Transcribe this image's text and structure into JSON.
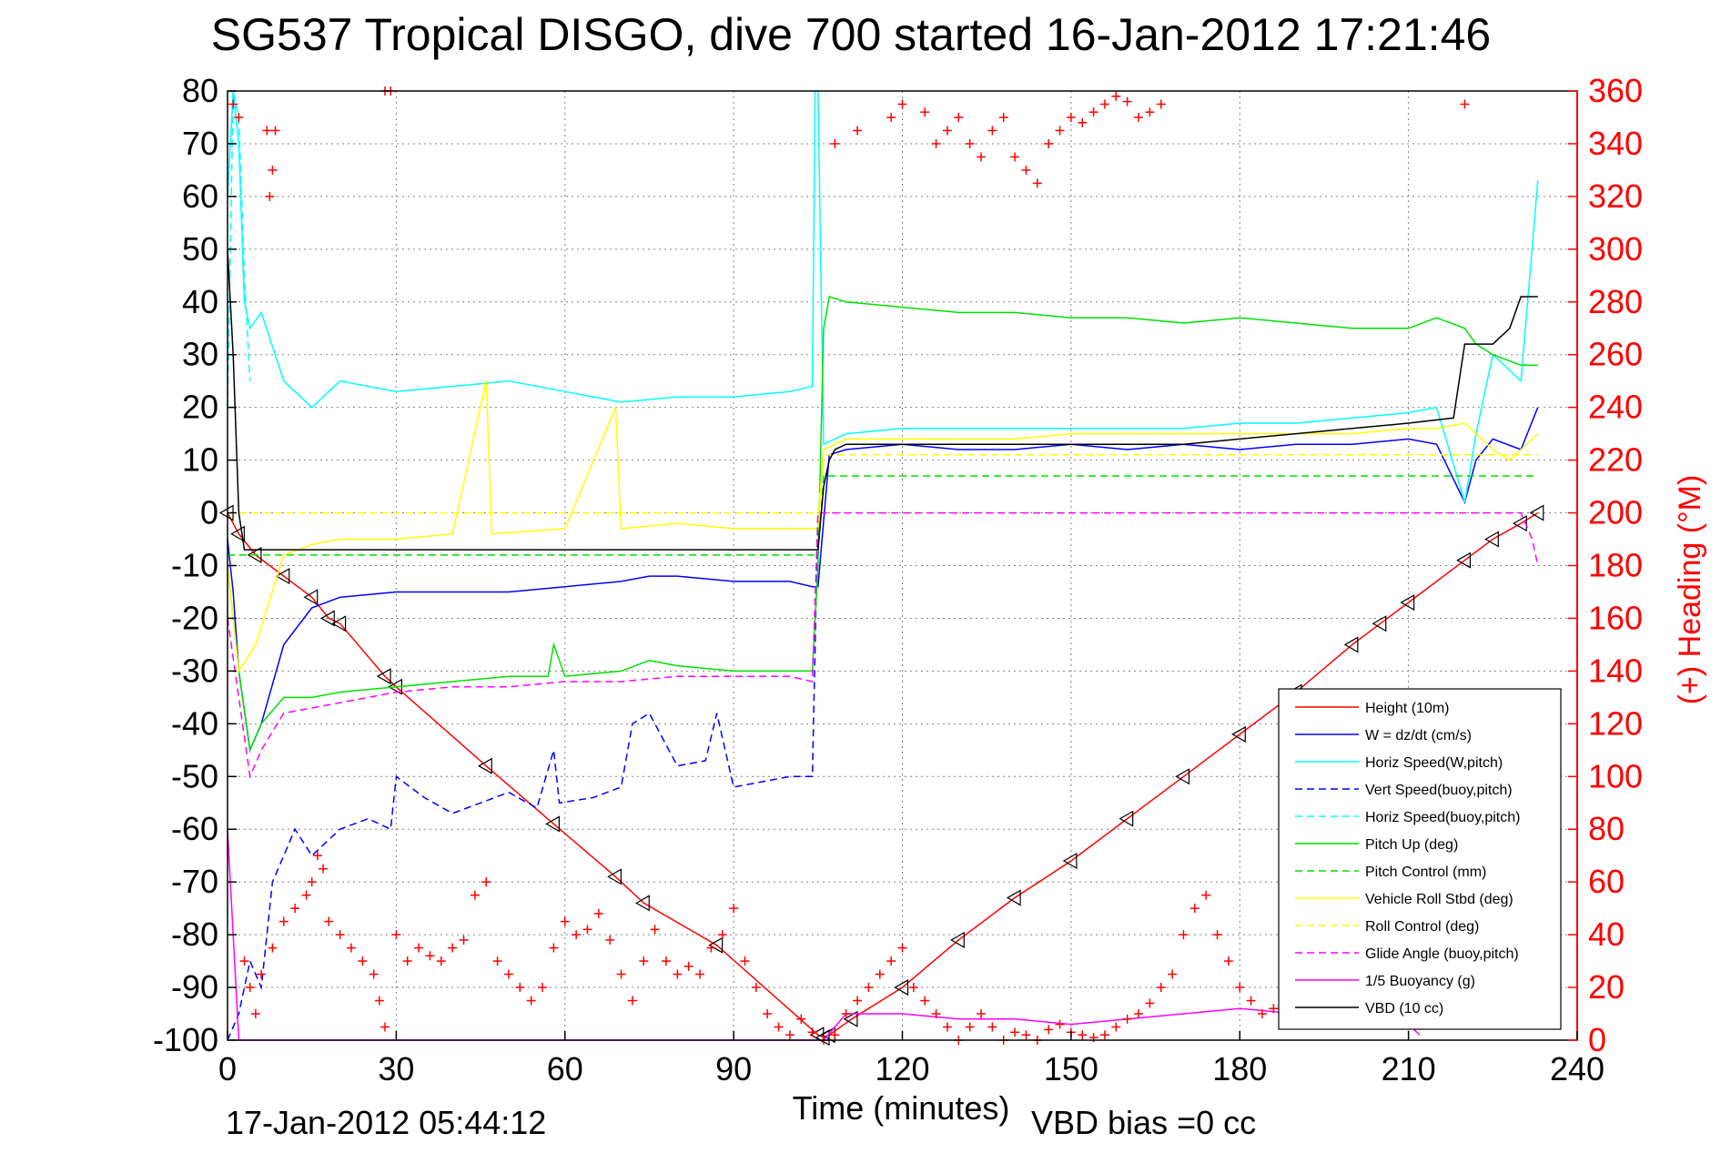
{
  "chart_data": {
    "type": "line",
    "title": "SG537 Tropical DISGO, dive 700 started 16-Jan-2012 17:21:46",
    "xlabel": "Time (minutes)",
    "ylabel_right": "(+) Heading (°M)",
    "end_time_label": "17-Jan-2012 05:44:12",
    "vbd_bias_label": "VBD bias =0 cc",
    "xlim": [
      0,
      240
    ],
    "ylim_left": [
      -100,
      80
    ],
    "ylim_right": [
      0,
      360
    ],
    "x_ticks": [
      0,
      30,
      60,
      90,
      120,
      150,
      180,
      210,
      240
    ],
    "y_ticks_left": [
      80,
      70,
      60,
      50,
      40,
      30,
      20,
      10,
      0,
      -10,
      -20,
      -30,
      -40,
      -50,
      -60,
      -70,
      -80,
      -90,
      -100
    ],
    "y_ticks_right": [
      360,
      340,
      320,
      300,
      280,
      260,
      240,
      220,
      200,
      180,
      160,
      140,
      120,
      100,
      80,
      60,
      40,
      20,
      0
    ],
    "grid": true,
    "legend_position": "bottom-right",
    "colors": {
      "height": "#ff0000",
      "w": "#0000ff",
      "horiz_w": "#00ffff",
      "vert_buoy": "#0000ff",
      "horiz_buoy": "#00ffff",
      "pitch_up": "#00e000",
      "pitch_control": "#00e000",
      "roll": "#ffff00",
      "roll_control": "#ffff00",
      "glide_angle": "#ff00ff",
      "buoyancy": "#ff00ff",
      "vbd": "#000000",
      "heading": "#ff0000"
    },
    "legend": [
      {
        "label": "Height (10m)",
        "key": "height",
        "dash": false
      },
      {
        "label": "W = dz/dt (cm/s)",
        "key": "w",
        "dash": false
      },
      {
        "label": "Horiz Speed(W,pitch)",
        "key": "horiz_w",
        "dash": false
      },
      {
        "label": "Vert Speed(buoy,pitch)",
        "key": "vert_buoy",
        "dash": true
      },
      {
        "label": "Horiz Speed(buoy,pitch)",
        "key": "horiz_buoy",
        "dash": true
      },
      {
        "label": "Pitch Up (deg)",
        "key": "pitch_up",
        "dash": false
      },
      {
        "label": "Pitch Control (mm)",
        "key": "pitch_control",
        "dash": true
      },
      {
        "label": "Vehicle Roll Stbd (deg)",
        "key": "roll",
        "dash": false
      },
      {
        "label": "Roll Control (deg)",
        "key": "roll_control",
        "dash": true
      },
      {
        "label": "Glide Angle (buoy,pitch)",
        "key": "glide_angle",
        "dash": true
      },
      {
        "label": "1/5 Buoyancy (g)",
        "key": "buoyancy",
        "dash": false
      },
      {
        "label": "VBD (10 cc)",
        "key": "vbd",
        "dash": false
      }
    ],
    "series": [
      {
        "key": "height",
        "axis": "left",
        "dash": false,
        "markers": true,
        "x": [
          0,
          2,
          5,
          10,
          15,
          18,
          20,
          28,
          30,
          46,
          58,
          69,
          74,
          87,
          105,
          106,
          107,
          111,
          120,
          130,
          140,
          150,
          160,
          170,
          180,
          190,
          200,
          205,
          210,
          220,
          225,
          230,
          233
        ],
        "y": [
          0,
          -4,
          -8,
          -12,
          -16,
          -20,
          -21,
          -31,
          -33,
          -48,
          -59,
          -69,
          -74,
          -82,
          -99,
          -99.5,
          -99,
          -96,
          -90,
          -81,
          -73,
          -66,
          -58,
          -50,
          -42,
          -34,
          -25,
          -21,
          -17,
          -9,
          -5,
          -2,
          0
        ]
      },
      {
        "key": "w",
        "axis": "left",
        "dash": false,
        "x": [
          0,
          1,
          2,
          4,
          6,
          10,
          15,
          20,
          30,
          40,
          50,
          60,
          70,
          75,
          80,
          90,
          100,
          104,
          105,
          107,
          110,
          120,
          130,
          140,
          150,
          160,
          170,
          180,
          190,
          200,
          210,
          215,
          220,
          222,
          225,
          230,
          233
        ],
        "y": [
          -5,
          -15,
          -30,
          -45,
          -40,
          -25,
          -18,
          -16,
          -15,
          -15,
          -15,
          -14,
          -13,
          -12,
          -12,
          -13,
          -13,
          -14,
          -14,
          11,
          12,
          13,
          12,
          12,
          13,
          12,
          13,
          12,
          13,
          13,
          14,
          13,
          2,
          10,
          14,
          12,
          20
        ]
      },
      {
        "key": "horiz_w",
        "axis": "left",
        "dash": false,
        "x": [
          0,
          1,
          2,
          3,
          4,
          6,
          10,
          15,
          20,
          25,
          30,
          40,
          50,
          60,
          70,
          80,
          90,
          100,
          104,
          104.5,
          105,
          106,
          110,
          120,
          130,
          140,
          150,
          160,
          170,
          180,
          190,
          200,
          210,
          215,
          220,
          222,
          225,
          230,
          233
        ],
        "y": [
          60,
          80,
          70,
          40,
          35,
          38,
          25,
          20,
          25,
          24,
          23,
          24,
          25,
          23,
          21,
          22,
          22,
          23,
          24,
          80,
          80,
          13,
          15,
          16,
          16,
          16,
          16,
          16,
          16,
          17,
          17,
          18,
          19,
          20,
          2,
          15,
          30,
          25,
          63
        ]
      },
      {
        "key": "vert_buoy",
        "axis": "left",
        "dash": true,
        "x": [
          0,
          2,
          4,
          6,
          8,
          10,
          12,
          15,
          20,
          25,
          29,
          30,
          35,
          40,
          45,
          50,
          55,
          58,
          59,
          65,
          70,
          72,
          75,
          80,
          85,
          87,
          90,
          95,
          100,
          104,
          105
        ],
        "y": [
          -100,
          -95,
          -85,
          -90,
          -70,
          -65,
          -60,
          -65,
          -60,
          -58,
          -60,
          -50,
          -54,
          -57,
          -55,
          -53,
          -56,
          -45,
          -55,
          -54,
          -52,
          -40,
          -38,
          -48,
          -47,
          -38,
          -52,
          -51,
          -50,
          -50,
          0
        ]
      },
      {
        "key": "horiz_buoy",
        "axis": "left",
        "dash": true,
        "x": [
          0,
          1,
          2,
          3,
          4
        ],
        "y": [
          20,
          80,
          75,
          45,
          25
        ]
      },
      {
        "key": "pitch_up",
        "axis": "left",
        "dash": false,
        "x": [
          0,
          2,
          4,
          6,
          10,
          15,
          20,
          30,
          40,
          50,
          57,
          58,
          60,
          70,
          75,
          80,
          90,
          100,
          104,
          105,
          106,
          107,
          110,
          120,
          130,
          140,
          150,
          160,
          170,
          180,
          190,
          200,
          210,
          215,
          220,
          222,
          225,
          230,
          233
        ],
        "y": [
          -10,
          -30,
          -45,
          -40,
          -35,
          -35,
          -34,
          -33,
          -32,
          -31,
          -31,
          -25,
          -31,
          -30,
          -28,
          -29,
          -30,
          -30,
          -30,
          -10,
          35,
          41,
          40,
          39,
          38,
          38,
          37,
          37,
          36,
          37,
          36,
          35,
          35,
          37,
          35,
          32,
          30,
          28,
          28
        ]
      },
      {
        "key": "pitch_control",
        "axis": "left",
        "dash": true,
        "x": [
          0,
          5,
          104,
          105,
          106,
          233
        ],
        "y": [
          -8,
          -8,
          -8,
          -8,
          7,
          7
        ]
      },
      {
        "key": "roll",
        "axis": "left",
        "dash": false,
        "x": [
          0,
          2,
          5,
          10,
          15,
          20,
          30,
          40,
          46,
          47,
          60,
          69,
          70,
          80,
          90,
          100,
          104,
          105,
          106,
          110,
          120,
          130,
          140,
          150,
          160,
          170,
          180,
          190,
          200,
          210,
          215,
          220,
          222,
          225,
          228,
          230,
          233
        ],
        "y": [
          -10,
          -30,
          -25,
          -8,
          -6,
          -5,
          -5,
          -4,
          25,
          -4,
          -3,
          20,
          -3,
          -2,
          -3,
          -3,
          -3,
          -3,
          12,
          14,
          14,
          14,
          14,
          15,
          15,
          15,
          15,
          15,
          15,
          16,
          16,
          17,
          15,
          12,
          10,
          12,
          15
        ]
      },
      {
        "key": "roll_control",
        "axis": "left",
        "dash": true,
        "x": [
          0,
          2,
          104,
          105,
          106,
          233
        ],
        "y": [
          0,
          0,
          0,
          0,
          11,
          11
        ]
      },
      {
        "key": "glide_angle",
        "axis": "left",
        "dash": true,
        "x": [
          0,
          4,
          6,
          10,
          20,
          30,
          40,
          50,
          60,
          70,
          80,
          90,
          100,
          104,
          105,
          106,
          230,
          232,
          233
        ],
        "y": [
          -20,
          -50,
          -45,
          -38,
          -36,
          -34,
          -33,
          -33,
          -32,
          -32,
          -31,
          -31,
          -31,
          -32,
          0,
          0,
          0,
          -5,
          -10
        ]
      },
      {
        "key": "buoyancy",
        "axis": "left",
        "dash": false,
        "x": [
          0,
          1,
          2,
          106,
          110,
          120,
          130,
          140,
          150,
          160,
          170,
          180,
          190,
          200,
          210,
          212
        ],
        "y": [
          -60,
          -80,
          -100,
          -100,
          -95,
          -95,
          -96,
          -96,
          -97,
          -96,
          -95,
          -94,
          -95,
          -96,
          -97,
          -99
        ]
      },
      {
        "key": "vbd",
        "axis": "left",
        "dash": false,
        "x": [
          0,
          1,
          2,
          3,
          4,
          104,
          105,
          106,
          107,
          108,
          110,
          130,
          150,
          170,
          180,
          190,
          200,
          210,
          218,
          220,
          225,
          228,
          230,
          233
        ],
        "y": [
          50,
          30,
          0,
          -7,
          -7,
          -7,
          -7,
          5,
          10,
          12,
          13,
          13,
          13,
          13,
          14,
          15,
          16,
          17,
          18,
          32,
          32,
          35,
          41,
          41
        ]
      },
      {
        "key": "heading",
        "axis": "right",
        "markers_only": true,
        "x": [
          1,
          2,
          7,
          7.5,
          8,
          8.5,
          28,
          29,
          3,
          4,
          5,
          6,
          8,
          10,
          12,
          14,
          15,
          16,
          17,
          18,
          20,
          22,
          24,
          26,
          27,
          28,
          30,
          32,
          34,
          36,
          38,
          40,
          42,
          44,
          46,
          48,
          50,
          52,
          54,
          56,
          58,
          60,
          62,
          64,
          66,
          68,
          70,
          72,
          74,
          76,
          78,
          80,
          82,
          84,
          86,
          88,
          90,
          92,
          94,
          96,
          98,
          100,
          102,
          104,
          106,
          108,
          110,
          112,
          114,
          116,
          118,
          120,
          122,
          124,
          126,
          128,
          130,
          132,
          134,
          136,
          138,
          140,
          142,
          144,
          146,
          148,
          150,
          152,
          154,
          156,
          158,
          160,
          162,
          164,
          166,
          168,
          170,
          172,
          174,
          176,
          178,
          180,
          182,
          184,
          186,
          108,
          112,
          118,
          120,
          124,
          126,
          128,
          130,
          132,
          134,
          136,
          138,
          140,
          142,
          144,
          146,
          148,
          150,
          152,
          154,
          156,
          158,
          160,
          162,
          164,
          166,
          220
        ],
        "y": [
          355,
          350,
          345,
          320,
          330,
          345,
          360,
          360,
          30,
          20,
          10,
          25,
          35,
          45,
          50,
          55,
          60,
          70,
          65,
          45,
          40,
          35,
          30,
          25,
          15,
          5,
          40,
          30,
          35,
          32,
          30,
          35,
          38,
          55,
          60,
          30,
          25,
          20,
          15,
          20,
          35,
          45,
          40,
          42,
          48,
          38,
          25,
          15,
          30,
          42,
          30,
          25,
          28,
          25,
          35,
          40,
          50,
          30,
          20,
          10,
          5,
          2,
          8,
          3,
          0,
          2,
          10,
          15,
          20,
          25,
          30,
          35,
          20,
          15,
          10,
          5,
          0,
          5,
          10,
          5,
          0,
          3,
          2,
          0,
          4,
          6,
          3,
          2,
          1,
          2,
          5,
          8,
          10,
          14,
          20,
          25,
          40,
          50,
          55,
          40,
          30,
          20,
          15,
          10,
          12,
          340,
          345,
          350,
          355,
          352,
          340,
          345,
          350,
          340,
          335,
          345,
          350,
          335,
          330,
          325,
          340,
          345,
          350,
          348,
          352,
          355,
          358,
          356,
          350,
          352,
          355,
          355
        ]
      }
    ]
  }
}
